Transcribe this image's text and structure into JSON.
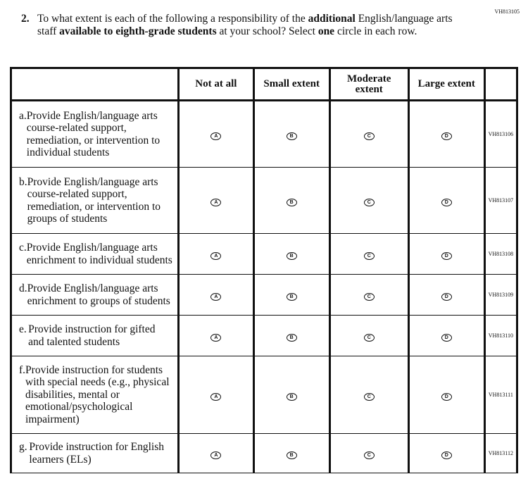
{
  "question_id": "VH813105",
  "question": {
    "number": "2.",
    "parts": [
      {
        "text": "To what extent is each of the following a responsibility of the ",
        "bold": false
      },
      {
        "text": "additional",
        "bold": true
      },
      {
        "text": " English/language arts staff ",
        "bold": false
      },
      {
        "text": "available to eighth-grade students",
        "bold": true
      },
      {
        "text": " at your school? Select ",
        "bold": false
      },
      {
        "text": "one",
        "bold": true
      },
      {
        "text": " circle in each row.",
        "bold": false
      }
    ]
  },
  "columns": [
    "Not at all",
    "Small extent",
    "Moderate extent",
    "Large extent"
  ],
  "bubble_letters": [
    "A",
    "B",
    "C",
    "D"
  ],
  "rows": [
    {
      "letter": "a.",
      "text": "Provide English/language arts course-related support, remediation, or intervention to individual students",
      "code": "VH813106",
      "height": 95
    },
    {
      "letter": "b.",
      "text": "Provide English/language arts course-related support, remediation, or intervention to groups of students",
      "code": "VH813107",
      "height": 94
    },
    {
      "letter": "c.",
      "text": "Provide English/language arts enrichment to individual students",
      "code": "VH813108",
      "height": 58
    },
    {
      "letter": "d.",
      "text": "Provide English/language arts enrichment to groups of students",
      "code": "VH813109",
      "height": 58
    },
    {
      "letter": "e.",
      "text": "Provide instruction for gifted and talented students",
      "code": "VH813110",
      "height": 58
    },
    {
      "letter": "f.",
      "text": "Provide instruction for students with special needs (e.g., physical disabilities, mental or emotional/psychological impairment)",
      "code": "VH813111",
      "height": 110
    },
    {
      "letter": "g.",
      "text": "Provide instruction for English learners (ELs)",
      "code": "VH813112",
      "height": 56
    }
  ]
}
